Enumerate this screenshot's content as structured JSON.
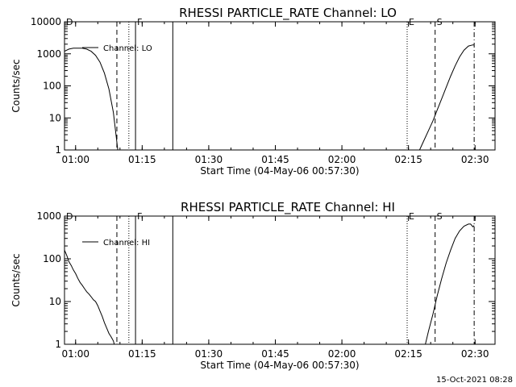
{
  "stamp": "15-Oct-2021 08:28",
  "chart_data": [
    {
      "type": "line",
      "title": "RHESSI PARTICLE_RATE Channel: LO",
      "xlabel": "Start Time (04-May-06 00:57:30)",
      "ylabel": "Counts/sec",
      "xlim_minutes": [
        0,
        97
      ],
      "ylim": [
        1,
        10000
      ],
      "yscale": "log",
      "x_ticks": [
        {
          "label": "01:00",
          "min": 2.5
        },
        {
          "label": "01:15",
          "min": 17.5
        },
        {
          "label": "01:30",
          "min": 32.5
        },
        {
          "label": "01:45",
          "min": 47.5
        },
        {
          "label": "02:00",
          "min": 62.5
        },
        {
          "label": "02:15",
          "min": 77.5
        },
        {
          "label": "02:30",
          "min": 92.5
        }
      ],
      "y_ticks": [
        {
          "label": "1",
          "v": 1
        },
        {
          "label": "10",
          "v": 10
        },
        {
          "label": "100",
          "v": 100
        },
        {
          "label": "1000",
          "v": 1000
        },
        {
          "label": "10000",
          "v": 10000
        }
      ],
      "legend": {
        "label": "Channel: LO",
        "position": "top-left"
      },
      "markers": [
        {
          "label": "D",
          "min": 0,
          "style": "dashed"
        },
        {
          "label": "",
          "min": 11.8,
          "style": "dashed"
        },
        {
          "label": "",
          "min": 14.5,
          "style": "dotted"
        },
        {
          "label": "F",
          "min": 16.0,
          "style": "solid"
        },
        {
          "label": "",
          "min": 24.4,
          "style": "solid"
        },
        {
          "label": "E",
          "min": 77.2,
          "style": "dotted"
        },
        {
          "label": "S",
          "min": 83.5,
          "style": "dashed"
        },
        {
          "label": "",
          "min": 92.3,
          "style": "dashdot"
        }
      ],
      "series": [
        {
          "name": "Channel: LO",
          "segments": [
            [
              [
                0,
                1200
              ],
              [
                1,
                1400
              ],
              [
                2,
                1500
              ],
              [
                3,
                1500
              ],
              [
                4,
                1500
              ],
              [
                5,
                1400
              ],
              [
                6,
                1200
              ],
              [
                7,
                900
              ],
              [
                8,
                550
              ],
              [
                9,
                250
              ],
              [
                10,
                80
              ],
              [
                11,
                15
              ],
              [
                12,
                1
              ]
            ],
            [
              [
                80,
                1
              ],
              [
                81,
                2
              ],
              [
                82,
                4
              ],
              [
                83,
                8
              ],
              [
                84,
                18
              ],
              [
                85,
                40
              ],
              [
                86,
                90
              ],
              [
                87,
                200
              ],
              [
                88,
                420
              ],
              [
                89,
                800
              ],
              [
                90,
                1300
              ],
              [
                91,
                1750
              ],
              [
                92,
                1900
              ],
              [
                92.3,
                1900
              ]
            ]
          ]
        }
      ]
    },
    {
      "type": "line",
      "title": "RHESSI PARTICLE_RATE Channel: HI",
      "xlabel": "Start Time (04-May-06 00:57:30)",
      "ylabel": "Counts/sec",
      "xlim_minutes": [
        0,
        97
      ],
      "ylim": [
        1,
        1000
      ],
      "yscale": "log",
      "x_ticks": [
        {
          "label": "01:00",
          "min": 2.5
        },
        {
          "label": "01:15",
          "min": 17.5
        },
        {
          "label": "01:30",
          "min": 32.5
        },
        {
          "label": "01:45",
          "min": 47.5
        },
        {
          "label": "02:00",
          "min": 62.5
        },
        {
          "label": "02:15",
          "min": 77.5
        },
        {
          "label": "02:30",
          "min": 92.5
        }
      ],
      "y_ticks": [
        {
          "label": "1",
          "v": 1
        },
        {
          "label": "10",
          "v": 10
        },
        {
          "label": "100",
          "v": 100
        },
        {
          "label": "1000",
          "v": 1000
        }
      ],
      "legend": {
        "label": "Channel: HI",
        "position": "top-left"
      },
      "markers": [
        {
          "label": "D",
          "min": 0,
          "style": "dashed"
        },
        {
          "label": "",
          "min": 11.8,
          "style": "dashed"
        },
        {
          "label": "",
          "min": 14.5,
          "style": "dotted"
        },
        {
          "label": "F",
          "min": 16.0,
          "style": "solid"
        },
        {
          "label": "",
          "min": 24.4,
          "style": "solid"
        },
        {
          "label": "E",
          "min": 77.2,
          "style": "dotted"
        },
        {
          "label": "S",
          "min": 83.5,
          "style": "dashed"
        },
        {
          "label": "",
          "min": 92.3,
          "style": "dashdot"
        }
      ],
      "series": [
        {
          "name": "Channel: HI",
          "segments": [
            [
              [
                0,
                160
              ],
              [
                0.5,
                120
              ],
              [
                1,
                85
              ],
              [
                1.5,
                70
              ],
              [
                2,
                55
              ],
              [
                2.5,
                45
              ],
              [
                3,
                35
              ],
              [
                3.5,
                28
              ],
              [
                4,
                24
              ],
              [
                4.5,
                20
              ],
              [
                5,
                17
              ],
              [
                5.5,
                15
              ],
              [
                6,
                13
              ],
              [
                6.5,
                11
              ],
              [
                7,
                10
              ],
              [
                7.5,
                8
              ],
              [
                8,
                6
              ],
              [
                8.5,
                4.5
              ],
              [
                9,
                3.2
              ],
              [
                9.5,
                2.4
              ],
              [
                10,
                1.8
              ],
              [
                10.5,
                1.5
              ],
              [
                11,
                1.2
              ],
              [
                11.2,
                1
              ]
            ],
            [
              [
                81.3,
                1
              ],
              [
                82,
                2
              ],
              [
                83,
                5
              ],
              [
                84,
                14
              ],
              [
                85,
                35
              ],
              [
                86,
                80
              ],
              [
                87,
                160
              ],
              [
                88,
                300
              ],
              [
                89,
                450
              ],
              [
                90,
                580
              ],
              [
                91,
                650
              ],
              [
                91.5,
                650
              ],
              [
                92,
                560
              ],
              [
                92.3,
                600
              ]
            ]
          ]
        }
      ]
    }
  ]
}
